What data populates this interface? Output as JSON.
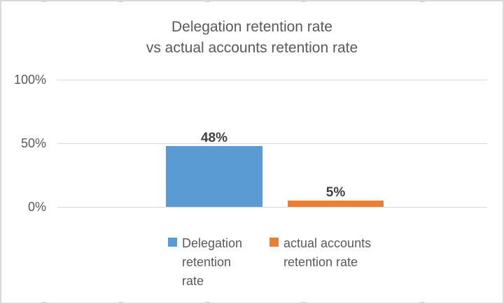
{
  "window": {
    "background_color": "#ffffff",
    "border_color": "#d9d9d9"
  },
  "chart": {
    "title_display": "Delegation retention rate\nvs actual accounts retention rate",
    "title_color": "#595959"
  },
  "chart_data": {
    "type": "bar",
    "title": "Delegation retention rate vs actual accounts retention rate",
    "categories": [
      "Delegation retention rate",
      "actual accounts retention rate"
    ],
    "series": [
      {
        "name": "Delegation retention rate",
        "value": 48,
        "label": "48%",
        "color": "#5b9bd5"
      },
      {
        "name": "actual accounts retention rate",
        "value": 5,
        "label": "5%",
        "color": "#ed7d31"
      }
    ],
    "xlabel": "",
    "ylabel": "",
    "ylim": [
      0,
      100
    ],
    "y_ticks": [
      "100%",
      "50%",
      "0%"
    ],
    "y_tick_values": [
      100,
      50,
      0
    ],
    "grid": true,
    "gridline_color": "#d9d9d9",
    "data_label_color": "#404040",
    "axis_label_color": "#595959",
    "legend_position": "bottom"
  },
  "legend": {
    "items": [
      {
        "label_display": "Delegation\nretention\nrate",
        "color": "#5b9bd5"
      },
      {
        "label_display": "actual accounts\nretention rate",
        "color": "#ed7d31"
      }
    ]
  }
}
